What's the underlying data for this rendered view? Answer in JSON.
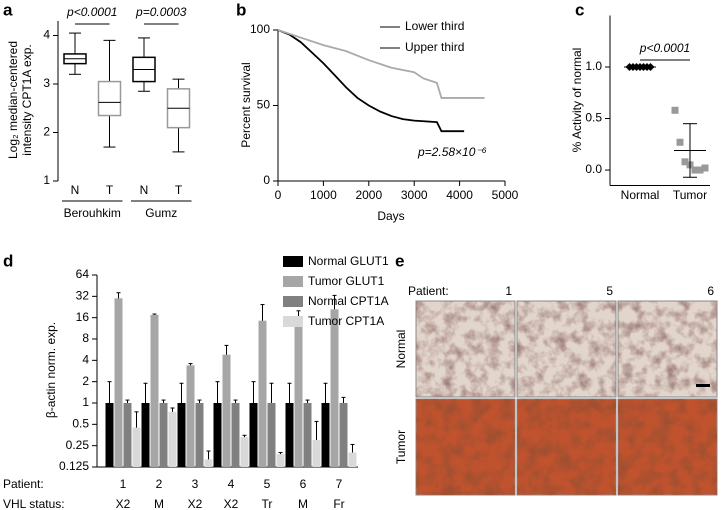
{
  "chart_data": [
    {
      "type": "box",
      "panel": "a",
      "ylabel": [
        "Log₂ median-centered",
        "intensity CPT1A exp."
      ],
      "categories": [
        "N",
        "T",
        "N",
        "T"
      ],
      "groups": [
        "Berouhkim",
        "Gumz"
      ],
      "colors": [
        "#000000",
        "#999999",
        "#000000",
        "#999999"
      ],
      "boxes": [
        {
          "min": 3.2,
          "q1": 3.42,
          "median": 3.52,
          "q3": 3.62,
          "max": 4.05
        },
        {
          "min": 1.7,
          "q1": 2.35,
          "median": 2.62,
          "q3": 3.05,
          "max": 3.9
        },
        {
          "min": 2.85,
          "q1": 3.05,
          "median": 3.3,
          "q3": 3.55,
          "max": 3.95
        },
        {
          "min": 1.6,
          "q1": 2.1,
          "median": 2.5,
          "q3": 2.9,
          "max": 3.1
        }
      ],
      "ylim": [
        1,
        4.3
      ],
      "yticks": [
        1,
        2,
        3,
        4
      ],
      "annotations": [
        "p<0.0001",
        "p=0.0003"
      ]
    },
    {
      "type": "line",
      "panel": "b",
      "xlabel": "Days",
      "ylabel": "Percent survival",
      "xlim": [
        0,
        5000
      ],
      "xticks": [
        0,
        1000,
        2000,
        3000,
        4000,
        5000
      ],
      "ylim": [
        0,
        100
      ],
      "yticks": [
        0,
        50,
        100
      ],
      "legend": "upper right",
      "series": [
        {
          "name": "Lower third",
          "color": "#000000",
          "x": [
            0,
            250,
            500,
            750,
            1000,
            1250,
            1500,
            1750,
            2000,
            2250,
            2500,
            2750,
            3000,
            3500,
            3600,
            4100
          ],
          "values": [
            100,
            97,
            92,
            85,
            78,
            70,
            62,
            55,
            50,
            46,
            43,
            41,
            40,
            39,
            33,
            33
          ]
        },
        {
          "name": "Upper third",
          "color": "#aaaaaa",
          "x": [
            0,
            500,
            1000,
            1500,
            2000,
            2500,
            3000,
            3200,
            3500,
            3600,
            4550
          ],
          "values": [
            100,
            95,
            90,
            86,
            80,
            75,
            72,
            68,
            65,
            55,
            55
          ]
        }
      ],
      "annotation": "p=2.58×10⁻⁶"
    },
    {
      "type": "dot",
      "panel": "c",
      "ylabel": "% Activity of normal",
      "categories": [
        "Normal",
        "Tumor"
      ],
      "colors": [
        "#000000",
        "#999999"
      ],
      "points": [
        [
          1,
          1,
          1,
          1,
          1,
          1,
          1
        ],
        [
          0.58,
          0.27,
          0.08,
          0.05,
          0,
          0,
          0.02
        ]
      ],
      "means": [
        1,
        0.19
      ],
      "errors": [
        0,
        0.26
      ],
      "ylim": [
        -0.15,
        1.5
      ],
      "yticks": [
        {
          "value": 0,
          "label": "0.0"
        },
        {
          "value": 0.5,
          "label": "0.5"
        },
        {
          "value": 1,
          "label": "1.0"
        }
      ],
      "annotation": "p<0.0001"
    },
    {
      "type": "bar",
      "panel": "d",
      "ylabel": "β-actin norm. exp.",
      "log_scale": true,
      "category_label": "Patient:",
      "categories": [
        "1",
        "2",
        "3",
        "4",
        "5",
        "6",
        "7"
      ],
      "row2_label": "VHL status:",
      "row2": [
        "X2",
        "M",
        "X2",
        "X2",
        "Tr",
        "M",
        "Fr"
      ],
      "ylim": [
        0.125,
        64
      ],
      "yticks": [
        0.125,
        0.25,
        0.5,
        1,
        2,
        4,
        8,
        16,
        32,
        64
      ],
      "series": [
        {
          "name": "Normal GLUT1",
          "color": "#000000",
          "values": [
            1,
            1,
            1,
            1,
            1,
            1,
            1
          ],
          "errors": [
            1,
            0.9,
            0.9,
            1,
            1,
            0.9,
            0.9
          ]
        },
        {
          "name": "Tumor GLUT1",
          "color": "#a6a6a6",
          "values": [
            30,
            17.5,
            3.4,
            4.8,
            14.5,
            14,
            21
          ],
          "errors": [
            6,
            0.5,
            0.2,
            1.7,
            10,
            6,
            12
          ]
        },
        {
          "name": "Normal CPT1A",
          "color": "#808080",
          "values": [
            1,
            1,
            1,
            1,
            1,
            1,
            1
          ],
          "errors": [
            0.1,
            0.1,
            0.1,
            0.1,
            0.9,
            0.1,
            0.2
          ]
        },
        {
          "name": "Tumor CPT1A",
          "color": "#d9d9d9",
          "values": [
            0.45,
            0.75,
            0.16,
            0.33,
            0.19,
            0.3,
            0.2
          ],
          "errors": [
            0.3,
            0.1,
            0.05,
            0.02,
            0.01,
            0.25,
            0.06
          ]
        }
      ]
    },
    {
      "type": "image_grid",
      "panel": "e",
      "column_label": "Patient:",
      "columns": [
        "1",
        "5",
        "6"
      ],
      "rows": [
        "Normal",
        "Tumor"
      ]
    }
  ]
}
